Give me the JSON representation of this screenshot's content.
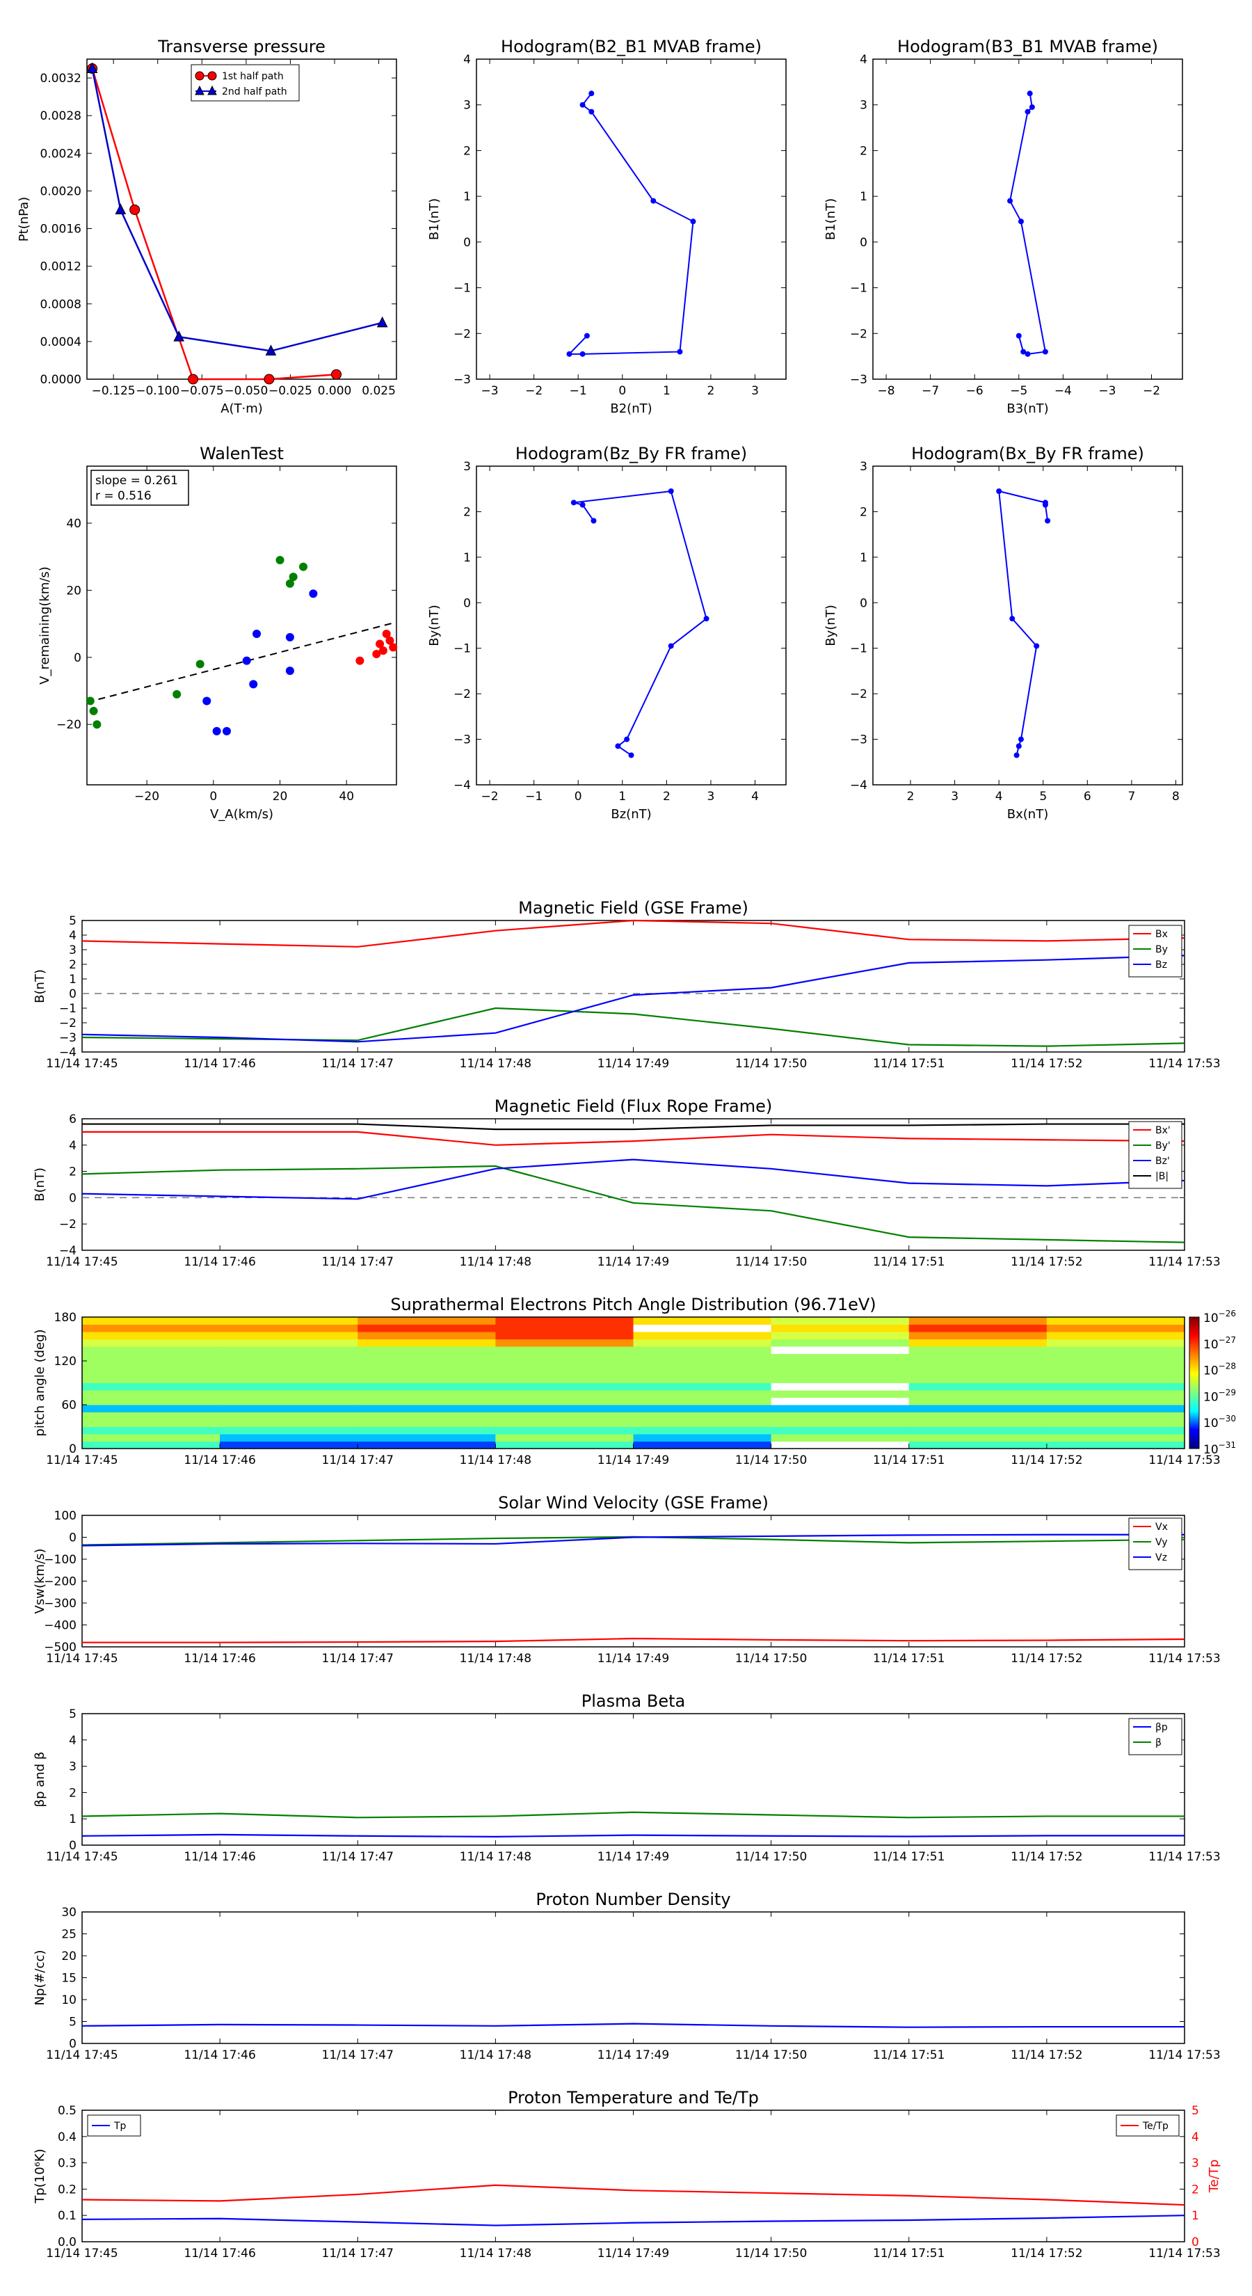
{
  "tz": {
    "transverse": {
      "title": "Transverse pressure",
      "xlabel": "A(T·m)",
      "ylabel": "Pt(nPa)",
      "xticks": [
        "−0.125",
        "−0.100",
        "−0.075",
        "−0.050",
        "−0.025",
        "0.000",
        "0.025"
      ],
      "yticks": [
        "0.0000",
        "0.0004",
        "0.0008",
        "0.0012",
        "0.0016",
        "0.0020",
        "0.0024",
        "0.0028",
        "0.0032"
      ],
      "legend": [
        "1st half path",
        "2nd half path"
      ]
    },
    "hodo_b2b1": {
      "title": "Hodogram(B2_B1 MVAB frame)",
      "xlabel": "B2(nT)",
      "ylabel": "B1(nT)",
      "xticks": [
        "−3",
        "−2",
        "−1",
        "0",
        "1",
        "2",
        "3"
      ],
      "yticks": [
        "−3",
        "−2",
        "−1",
        "0",
        "1",
        "2",
        "3",
        "4"
      ]
    },
    "hodo_b3b1": {
      "title": "Hodogram(B3_B1 MVAB frame)",
      "xlabel": "B3(nT)",
      "ylabel": "B1(nT)",
      "xticks": [
        "−8",
        "−7",
        "−6",
        "−5",
        "−4",
        "−3",
        "−2"
      ],
      "yticks": [
        "−3",
        "−2",
        "−1",
        "0",
        "1",
        "2",
        "3",
        "4"
      ]
    },
    "walen": {
      "title": "WalenTest",
      "xlabel": "V_A(km/s)",
      "ylabel": "V_remaining(km/s)",
      "xticks": [
        "−20",
        "0",
        "20",
        "40"
      ],
      "yticks": [
        "−20",
        "0",
        "20",
        "40"
      ],
      "slope": "slope = 0.261",
      "r": "r = 0.516"
    },
    "hodo_bzby": {
      "title": "Hodogram(Bz_By FR frame)",
      "xlabel": "Bz(nT)",
      "ylabel": "By(nT)",
      "xticks": [
        "−2",
        "−1",
        "0",
        "1",
        "2",
        "3",
        "4"
      ],
      "yticks": [
        "−4",
        "−3",
        "−2",
        "−1",
        "0",
        "1",
        "2",
        "3"
      ]
    },
    "hodo_bxby": {
      "title": "Hodogram(Bx_By FR frame)",
      "xlabel": "Bx(nT)",
      "ylabel": "By(nT)",
      "xticks": [
        "2",
        "3",
        "4",
        "5",
        "6",
        "7",
        "8"
      ],
      "yticks": [
        "−4",
        "−3",
        "−2",
        "−1",
        "0",
        "1",
        "2",
        "3"
      ]
    },
    "time_ticks": [
      "11/14 17:45",
      "11/14 17:46",
      "11/14 17:47",
      "11/14 17:48",
      "11/14 17:49",
      "11/14 17:50",
      "11/14 17:51",
      "11/14 17:52",
      "11/14 17:53"
    ],
    "mag_gse": {
      "title": "Magnetic Field (GSE Frame)",
      "ylabel": "B(nT)",
      "yticks": [
        "−4",
        "−3",
        "−2",
        "−1",
        "0",
        "1",
        "2",
        "3",
        "4",
        "5"
      ],
      "legend": [
        "Bx",
        "By",
        "Bz"
      ]
    },
    "mag_fr": {
      "title": "Magnetic Field (Flux Rope Frame)",
      "ylabel": "B(nT)",
      "yticks": [
        "−4",
        "−2",
        "0",
        "2",
        "4",
        "6"
      ],
      "legend": [
        "Bx'",
        "By'",
        "Bz'",
        "|B|"
      ]
    },
    "pad": {
      "title": "Suprathermal Electrons Pitch Angle Distribution (96.71eV)",
      "ylabel": "pitch angle (deg)",
      "yticks": [
        "0",
        "60",
        "120",
        "180"
      ],
      "cbar": [
        "10",
        "10",
        "10",
        "10",
        "10",
        "10"
      ],
      "cbar_exp": [
        "−26",
        "−27",
        "−28",
        "−29",
        "−30",
        "−31"
      ]
    },
    "sw": {
      "title": "Solar Wind Velocity (GSE Frame)",
      "ylabel": "Vsw(km/s)",
      "yticks": [
        "−500",
        "−400",
        "−300",
        "−200",
        "−100",
        "0",
        "100"
      ],
      "legend": [
        "Vx",
        "Vy",
        "Vz"
      ]
    },
    "beta": {
      "title": "Plasma Beta",
      "ylabel": "βp and β",
      "yticks": [
        "0",
        "1",
        "2",
        "3",
        "4",
        "5"
      ],
      "legend": [
        "βp",
        "β"
      ]
    },
    "np": {
      "title": "Proton Number Density",
      "ylabel": "Np(#/cc)",
      "yticks": [
        "0",
        "5",
        "10",
        "15",
        "20",
        "25",
        "30"
      ]
    },
    "tp": {
      "title": "Proton Temperature and Te/Tp",
      "ylabel": "Tp(10⁶K)",
      "ylabel_r": "Te/Tp",
      "yticks": [
        "0.0",
        "0.1",
        "0.2",
        "0.3",
        "0.4",
        "0.5"
      ],
      "yticks_r": [
        "0",
        "1",
        "2",
        "3",
        "4",
        "5"
      ],
      "legend_l": "Tp",
      "legend_r": "Te/Tp"
    }
  },
  "chart_data": [
    {
      "type": "line",
      "title": "Transverse pressure",
      "xlabel": "A(T·m)",
      "ylabel": "Pt(nPa)",
      "xlim": [
        -0.14,
        0.035
      ],
      "ylim": [
        0,
        0.0034
      ],
      "series": [
        {
          "name": "1st half path",
          "color": "#ff0000",
          "marker": "circle",
          "x": [
            -0.137,
            -0.113,
            -0.08,
            -0.037,
            0.001
          ],
          "y": [
            0.0033,
            0.0018,
            0.0,
            0.0,
            5e-05
          ]
        },
        {
          "name": "2nd half path",
          "color": "#0000cc",
          "marker": "triangle",
          "x": [
            -0.137,
            -0.121,
            -0.088,
            -0.036,
            0.027
          ],
          "y": [
            0.0033,
            0.0018,
            0.00045,
            0.0003,
            0.0006
          ]
        }
      ]
    },
    {
      "type": "line",
      "title": "Hodogram(B2_B1 MVAB frame)",
      "xlabel": "B2(nT)",
      "ylabel": "B1(nT)",
      "xlim": [
        -3.3,
        3.7
      ],
      "ylim": [
        -3,
        4
      ],
      "series": [
        {
          "color": "#0000ff",
          "x": [
            -0.7,
            -0.9,
            -0.7,
            0.7,
            1.6,
            1.3,
            -0.9,
            -1.2,
            -0.8
          ],
          "y": [
            3.25,
            3.0,
            2.85,
            0.9,
            0.45,
            -2.4,
            -2.45,
            -2.45,
            -2.05
          ]
        }
      ]
    },
    {
      "type": "line",
      "title": "Hodogram(B3_B1 MVAB frame)",
      "xlabel": "B3(nT)",
      "ylabel": "B1(nT)",
      "xlim": [
        -8.3,
        -1.3
      ],
      "ylim": [
        -3,
        4
      ],
      "series": [
        {
          "color": "#0000ff",
          "x": [
            -4.75,
            -4.7,
            -4.8,
            -5.2,
            -4.95,
            -4.4,
            -4.8,
            -4.9,
            -5.0
          ],
          "y": [
            3.25,
            2.95,
            2.85,
            0.9,
            0.45,
            -2.4,
            -2.45,
            -2.4,
            -2.05
          ]
        }
      ]
    },
    {
      "type": "scatter",
      "title": "WalenTest",
      "xlabel": "V_A(km/s)",
      "ylabel": "V_remaining(km/s)",
      "xlim": [
        -38,
        55
      ],
      "ylim": [
        -38,
        57
      ],
      "annotations": [
        "slope = 0.261",
        "r = 0.516"
      ],
      "fit_line": {
        "x": [
          -38,
          55
        ],
        "y": [
          -13.4,
          10.5
        ]
      },
      "series": [
        {
          "color": "#008000",
          "x": [
            -37,
            -36,
            -35,
            -11,
            -4,
            20,
            23,
            24,
            27
          ],
          "y": [
            -13,
            -16,
            -20,
            -11,
            -2,
            29,
            22,
            24,
            27
          ]
        },
        {
          "color": "#0000ff",
          "x": [
            -2,
            1,
            4,
            10,
            12,
            13,
            23,
            23,
            30
          ],
          "y": [
            -13,
            -22,
            -22,
            -1,
            -8,
            7,
            6,
            -4,
            19
          ]
        },
        {
          "color": "#ff0000",
          "x": [
            44,
            49,
            50,
            51,
            52,
            53,
            54
          ],
          "y": [
            -1,
            1,
            4,
            2,
            7,
            5,
            3
          ]
        }
      ]
    },
    {
      "type": "line",
      "title": "Hodogram(Bz_By FR frame)",
      "xlabel": "Bz(nT)",
      "ylabel": "By(nT)",
      "xlim": [
        -2.3,
        4.7
      ],
      "ylim": [
        -4,
        3
      ],
      "series": [
        {
          "color": "#0000ff",
          "x": [
            0.35,
            0.1,
            -0.1,
            2.1,
            2.9,
            2.1,
            1.1,
            0.9,
            1.2
          ],
          "y": [
            1.8,
            2.15,
            2.2,
            2.45,
            -0.35,
            -0.95,
            -3.0,
            -3.15,
            -3.35
          ]
        }
      ]
    },
    {
      "type": "line",
      "title": "Hodogram(Bx_By FR frame)",
      "xlabel": "Bx(nT)",
      "ylabel": "By(nT)",
      "xlim": [
        1.15,
        8.15
      ],
      "ylim": [
        -4,
        3
      ],
      "series": [
        {
          "color": "#0000ff",
          "x": [
            5.1,
            5.05,
            5.05,
            4.0,
            4.3,
            4.85,
            4.5,
            4.45,
            4.4
          ],
          "y": [
            1.8,
            2.15,
            2.2,
            2.45,
            -0.35,
            -0.95,
            -3.0,
            -3.15,
            -3.35
          ]
        }
      ]
    },
    {
      "type": "line",
      "title": "Magnetic Field (GSE Frame)",
      "ylabel": "B(nT)",
      "x": [
        "11/14 17:45",
        "11/14 17:46",
        "11/14 17:47",
        "11/14 17:48",
        "11/14 17:49",
        "11/14 17:50",
        "11/14 17:51",
        "11/14 17:52",
        "11/14 17:53"
      ],
      "ylim": [
        -4,
        5
      ],
      "series": [
        {
          "name": "Bx",
          "color": "#ff0000",
          "values": [
            3.6,
            3.4,
            3.2,
            4.3,
            5.0,
            4.8,
            3.7,
            3.6,
            3.8
          ]
        },
        {
          "name": "By",
          "color": "#008000",
          "values": [
            -3.0,
            -3.1,
            -3.2,
            -1.0,
            -1.4,
            -2.4,
            -3.5,
            -3.6,
            -3.4
          ]
        },
        {
          "name": "Bz",
          "color": "#0000ff",
          "values": [
            -2.8,
            -3.0,
            -3.3,
            -2.7,
            -0.1,
            0.4,
            2.1,
            2.3,
            2.6
          ]
        }
      ]
    },
    {
      "type": "line",
      "title": "Magnetic Field (Flux Rope Frame)",
      "ylabel": "B(nT)",
      "x": [
        "11/14 17:45",
        "11/14 17:46",
        "11/14 17:47",
        "11/14 17:48",
        "11/14 17:49",
        "11/14 17:50",
        "11/14 17:51",
        "11/14 17:52",
        "11/14 17:53"
      ],
      "ylim": [
        -4,
        6
      ],
      "series": [
        {
          "name": "Bx'",
          "color": "#ff0000",
          "values": [
            5.0,
            5.0,
            5.0,
            4.0,
            4.3,
            4.8,
            4.5,
            4.4,
            4.3
          ]
        },
        {
          "name": "By'",
          "color": "#008000",
          "values": [
            1.8,
            2.1,
            2.2,
            2.4,
            -0.4,
            -1.0,
            -3.0,
            -3.2,
            -3.4
          ]
        },
        {
          "name": "Bz'",
          "color": "#0000ff",
          "values": [
            0.3,
            0.1,
            -0.1,
            2.2,
            2.9,
            2.2,
            1.1,
            0.9,
            1.3
          ]
        },
        {
          "name": "|B|",
          "color": "#000000",
          "values": [
            5.6,
            5.6,
            5.6,
            5.2,
            5.2,
            5.5,
            5.5,
            5.6,
            5.6
          ]
        }
      ]
    },
    {
      "type": "heatmap",
      "title": "Suprathermal Electrons Pitch Angle Distribution (96.71eV)",
      "ylabel": "pitch angle (deg)",
      "x": [
        "11/14 17:45",
        "11/14 17:46",
        "11/14 17:47",
        "11/14 17:48",
        "11/14 17:49",
        "11/14 17:50",
        "11/14 17:51",
        "11/14 17:52"
      ],
      "ylim": [
        0,
        180
      ],
      "colorbar_range": [
        "10^-31",
        "10^-26"
      ]
    },
    {
      "type": "line",
      "title": "Solar Wind Velocity (GSE Frame)",
      "ylabel": "Vsw(km/s)",
      "x": [
        "11/14 17:45",
        "11/14 17:46",
        "11/14 17:47",
        "11/14 17:48",
        "11/14 17:49",
        "11/14 17:50",
        "11/14 17:51",
        "11/14 17:52",
        "11/14 17:53"
      ],
      "ylim": [
        -500,
        100
      ],
      "series": [
        {
          "name": "Vx",
          "color": "#ff0000",
          "values": [
            -480,
            -480,
            -478,
            -475,
            -462,
            -468,
            -472,
            -470,
            -465
          ]
        },
        {
          "name": "Vy",
          "color": "#008000",
          "values": [
            -35,
            -25,
            -15,
            -5,
            2,
            -10,
            -25,
            -18,
            -10
          ]
        },
        {
          "name": "Vz",
          "color": "#0000ff",
          "values": [
            -38,
            -30,
            -28,
            -30,
            0,
            5,
            10,
            12,
            12
          ]
        }
      ]
    },
    {
      "type": "line",
      "title": "Plasma Beta",
      "ylabel": "βp and β",
      "x": [
        "11/14 17:45",
        "11/14 17:46",
        "11/14 17:47",
        "11/14 17:48",
        "11/14 17:49",
        "11/14 17:50",
        "11/14 17:51",
        "11/14 17:52",
        "11/14 17:53"
      ],
      "ylim": [
        0,
        5
      ],
      "series": [
        {
          "name": "βp",
          "color": "#0000ff",
          "values": [
            0.35,
            0.4,
            0.35,
            0.32,
            0.38,
            0.35,
            0.33,
            0.36,
            0.36
          ]
        },
        {
          "name": "β",
          "color": "#008000",
          "values": [
            1.1,
            1.2,
            1.05,
            1.1,
            1.25,
            1.15,
            1.05,
            1.1,
            1.1
          ]
        }
      ]
    },
    {
      "type": "line",
      "title": "Proton Number Density",
      "ylabel": "Np(#/cc)",
      "x": [
        "11/14 17:45",
        "11/14 17:46",
        "11/14 17:47",
        "11/14 17:48",
        "11/14 17:49",
        "11/14 17:50",
        "11/14 17:51",
        "11/14 17:52",
        "11/14 17:53"
      ],
      "ylim": [
        0,
        30
      ],
      "series": [
        {
          "color": "#0000ff",
          "values": [
            4.0,
            4.3,
            4.2,
            4.0,
            4.5,
            4.0,
            3.7,
            3.8,
            3.8
          ]
        }
      ]
    },
    {
      "type": "line",
      "title": "Proton Temperature and Te/Tp",
      "ylabel": "Tp(10⁶K)",
      "x": [
        "11/14 17:45",
        "11/14 17:46",
        "11/14 17:47",
        "11/14 17:48",
        "11/14 17:49",
        "11/14 17:50",
        "11/14 17:51",
        "11/14 17:52",
        "11/14 17:53"
      ],
      "ylim": [
        0,
        0.5
      ],
      "ylim_right": [
        0,
        5
      ],
      "series": [
        {
          "name": "Tp",
          "color": "#0000ff",
          "axis": "left",
          "values": [
            0.085,
            0.088,
            0.075,
            0.062,
            0.072,
            0.078,
            0.082,
            0.09,
            0.1
          ]
        },
        {
          "name": "Te/Tp",
          "color": "#ff0000",
          "axis": "right",
          "values": [
            1.6,
            1.55,
            1.8,
            2.15,
            1.95,
            1.85,
            1.75,
            1.6,
            1.4
          ]
        }
      ]
    }
  ]
}
